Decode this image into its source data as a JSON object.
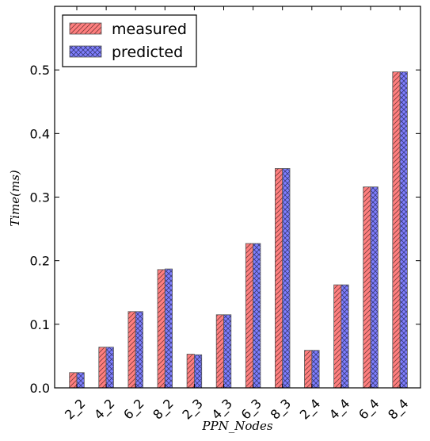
{
  "chart_data": {
    "type": "bar",
    "title": "",
    "xlabel": "PPN_Nodes",
    "ylabel": "Time(ms)",
    "ylim": [
      0,
      0.6
    ],
    "yticks": [
      "0.0",
      "0.1",
      "0.2",
      "0.3",
      "0.4",
      "0.5"
    ],
    "categories": [
      "2_2",
      "4_2",
      "6_2",
      "8_2",
      "2_3",
      "4_3",
      "6_3",
      "8_3",
      "2_4",
      "4_4",
      "6_4",
      "8_4"
    ],
    "series": [
      {
        "name": "measured",
        "color": "#ff7f7f",
        "hatch": "diagonal",
        "values": [
          0.024,
          0.064,
          0.12,
          0.186,
          0.053,
          0.115,
          0.227,
          0.345,
          0.059,
          0.162,
          0.316,
          0.497
        ]
      },
      {
        "name": "predicted",
        "color": "#7f7fff",
        "hatch": "crosshatch",
        "values": [
          0.024,
          0.064,
          0.12,
          0.187,
          0.052,
          0.115,
          0.227,
          0.345,
          0.059,
          0.162,
          0.316,
          0.497
        ]
      }
    ],
    "legend_position": "top-left",
    "grid": false
  }
}
